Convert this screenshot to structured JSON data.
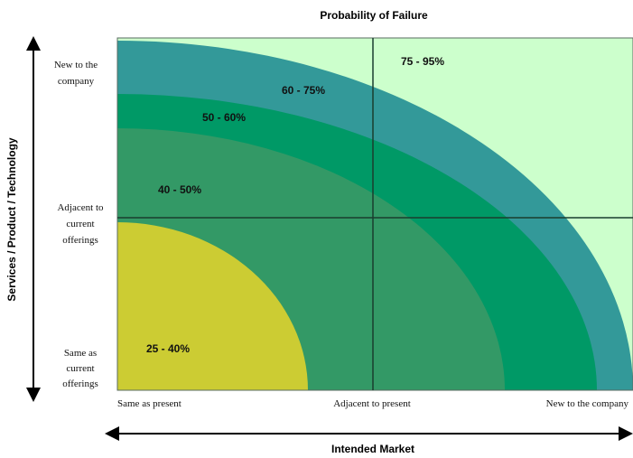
{
  "title": "Probability of Failure",
  "x_axis": {
    "title": "Intended Market",
    "ticks": [
      "Same as present",
      "Adjacent to present",
      "New to the company"
    ]
  },
  "y_axis": {
    "title": "Services / Product / Technology",
    "ticks": [
      [
        "New to the",
        "company"
      ],
      [
        "Adjacent to",
        "current",
        "offerings"
      ],
      [
        "Same as",
        "current",
        "offerings"
      ]
    ]
  },
  "zones": [
    {
      "label": "75 - 95%",
      "color": "#ccffcc"
    },
    {
      "label": "60 - 75%",
      "color": "#339999"
    },
    {
      "label": "50 - 60%",
      "color": "#009966"
    },
    {
      "label": "40 - 50%",
      "color": "#339966"
    },
    {
      "label": "25 - 40%",
      "color": "#cccc33"
    }
  ],
  "colors": {
    "grid_line": "#1a3d2e",
    "axis_arrow": "#000000",
    "border": "#5a6b62"
  }
}
